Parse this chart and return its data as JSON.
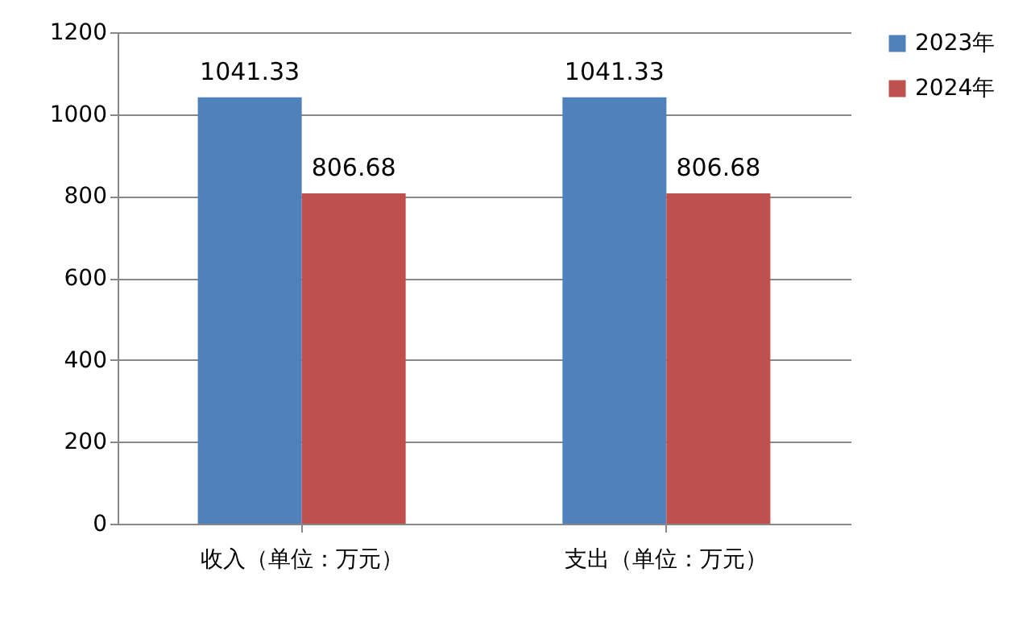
{
  "chart_data": {
    "type": "bar",
    "categories": [
      "收入（单位：万元）",
      "支出（单位：万元）"
    ],
    "series": [
      {
        "name": "2023年",
        "color": "#4f81bd",
        "values": [
          1041.33,
          1041.33
        ]
      },
      {
        "name": "2024年",
        "color": "#c0504d",
        "values": [
          806.68,
          806.68
        ]
      }
    ],
    "ylim": [
      0,
      1200
    ],
    "yticks": [
      0,
      200,
      400,
      600,
      800,
      1000,
      1200
    ],
    "grid": "y",
    "legend": "right",
    "data_labels": true
  }
}
